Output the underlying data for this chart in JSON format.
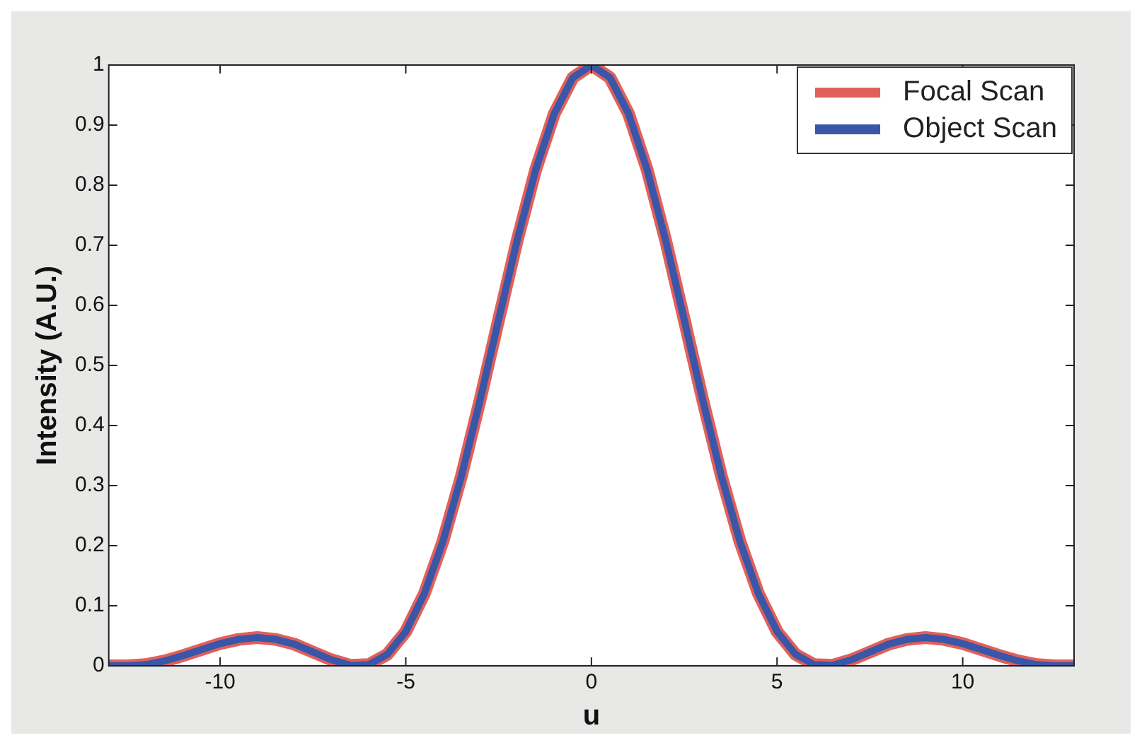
{
  "chart_data": {
    "type": "line",
    "xlabel": "u",
    "ylabel": "Intensity (A.U.)",
    "x": [
      -13,
      -12.5,
      -12,
      -11.5,
      -11,
      -10.5,
      -10,
      -9.5,
      -9,
      -8.5,
      -8,
      -7.5,
      -7,
      -6.5,
      -6,
      -5.5,
      -5,
      -4.5,
      -4,
      -3.5,
      -3,
      -2.5,
      -2,
      -1.5,
      -1,
      -0.5,
      0,
      0.5,
      1,
      1.5,
      2,
      2.5,
      3,
      3.5,
      4,
      4.5,
      5,
      5.5,
      6,
      6.5,
      7,
      7.5,
      8,
      8.5,
      9,
      9.5,
      10,
      10.5,
      11,
      11.5,
      12,
      12.5,
      13
    ],
    "series": [
      {
        "name": "Focal Scan",
        "color": "#e0605a",
        "values": [
          0,
          0,
          0.002,
          0.008,
          0.017,
          0.027,
          0.037,
          0.044,
          0.047,
          0.044,
          0.036,
          0.023,
          0.01,
          0.001,
          0.002,
          0.019,
          0.057,
          0.12,
          0.207,
          0.316,
          0.442,
          0.576,
          0.708,
          0.826,
          0.919,
          0.979,
          1,
          0.979,
          0.919,
          0.826,
          0.708,
          0.576,
          0.442,
          0.316,
          0.207,
          0.12,
          0.057,
          0.019,
          0.002,
          0.001,
          0.01,
          0.023,
          0.036,
          0.044,
          0.047,
          0.044,
          0.037,
          0.027,
          0.017,
          0.008,
          0.002,
          0,
          0
        ]
      },
      {
        "name": "Object Scan",
        "color": "#3a56a8",
        "values": [
          0,
          0,
          0.002,
          0.008,
          0.017,
          0.027,
          0.037,
          0.044,
          0.047,
          0.044,
          0.036,
          0.023,
          0.01,
          0.001,
          0.002,
          0.019,
          0.057,
          0.12,
          0.207,
          0.316,
          0.442,
          0.576,
          0.708,
          0.826,
          0.919,
          0.979,
          1,
          0.979,
          0.919,
          0.826,
          0.708,
          0.576,
          0.442,
          0.316,
          0.207,
          0.12,
          0.057,
          0.019,
          0.002,
          0.001,
          0.01,
          0.023,
          0.036,
          0.044,
          0.047,
          0.044,
          0.037,
          0.027,
          0.017,
          0.008,
          0.002,
          0,
          0
        ]
      }
    ],
    "xlim": [
      -13,
      13
    ],
    "xticks": [
      -10,
      -5,
      0,
      5,
      10
    ],
    "ylim": [
      0,
      1
    ],
    "yticks": [
      0,
      0.1,
      0.2,
      0.3,
      0.4,
      0.5,
      0.6,
      0.7,
      0.8,
      0.9,
      1
    ],
    "grid": false,
    "legend": "top right",
    "marker": "none",
    "line_style": "solid"
  }
}
